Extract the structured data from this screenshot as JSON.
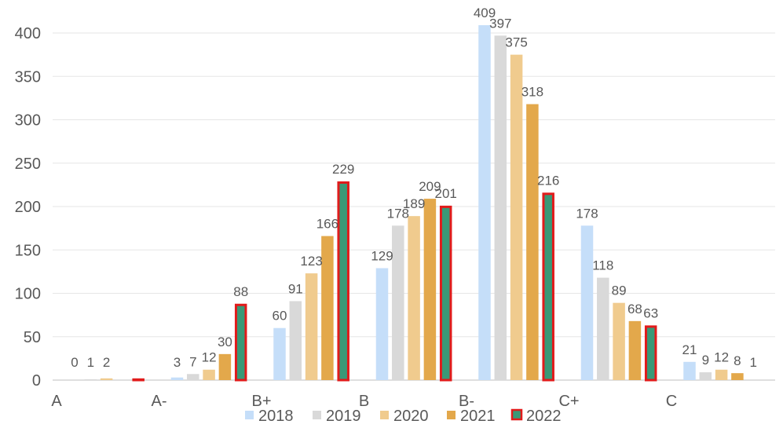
{
  "chart_data": {
    "type": "bar",
    "categories": [
      "A",
      "A-",
      "B+",
      "B",
      "B-",
      "C+",
      "C"
    ],
    "series": [
      {
        "name": "2018",
        "color": "#C5DEF9",
        "values": [
          0,
          3,
          60,
          129,
          409,
          178,
          21
        ]
      },
      {
        "name": "2019",
        "color": "#D9D9D9",
        "values": [
          1,
          7,
          91,
          178,
          397,
          118,
          9
        ]
      },
      {
        "name": "2020",
        "color": "#F0CB8E",
        "values": [
          2,
          12,
          123,
          189,
          375,
          89,
          12
        ]
      },
      {
        "name": "2021",
        "color": "#E3A84B",
        "values": [
          null,
          30,
          166,
          209,
          318,
          68,
          8
        ]
      },
      {
        "name": "2022",
        "color": "#3A9977",
        "border": "#E11B1B",
        "values": [
          2,
          88,
          229,
          201,
          216,
          63,
          1
        ]
      }
    ],
    "data_labels": [
      [
        "0",
        "3",
        "60",
        "129",
        "409",
        "178",
        "21"
      ],
      [
        "1",
        "7",
        "91",
        "178",
        "397",
        "118",
        "9"
      ],
      [
        "2",
        "12",
        "123",
        "189",
        "375",
        "89",
        "12"
      ],
      [
        "",
        "30",
        "166",
        "209",
        "318",
        "68",
        "8"
      ],
      [
        "",
        "88",
        "229",
        "201",
        "216",
        "63",
        "1"
      ]
    ],
    "y_ticks": [
      0,
      50,
      100,
      150,
      200,
      250,
      300,
      350,
      400
    ],
    "ylim": [
      0,
      400
    ],
    "title": "",
    "xlabel": "",
    "ylabel": "",
    "grid": true,
    "legend_position": "bottom"
  }
}
